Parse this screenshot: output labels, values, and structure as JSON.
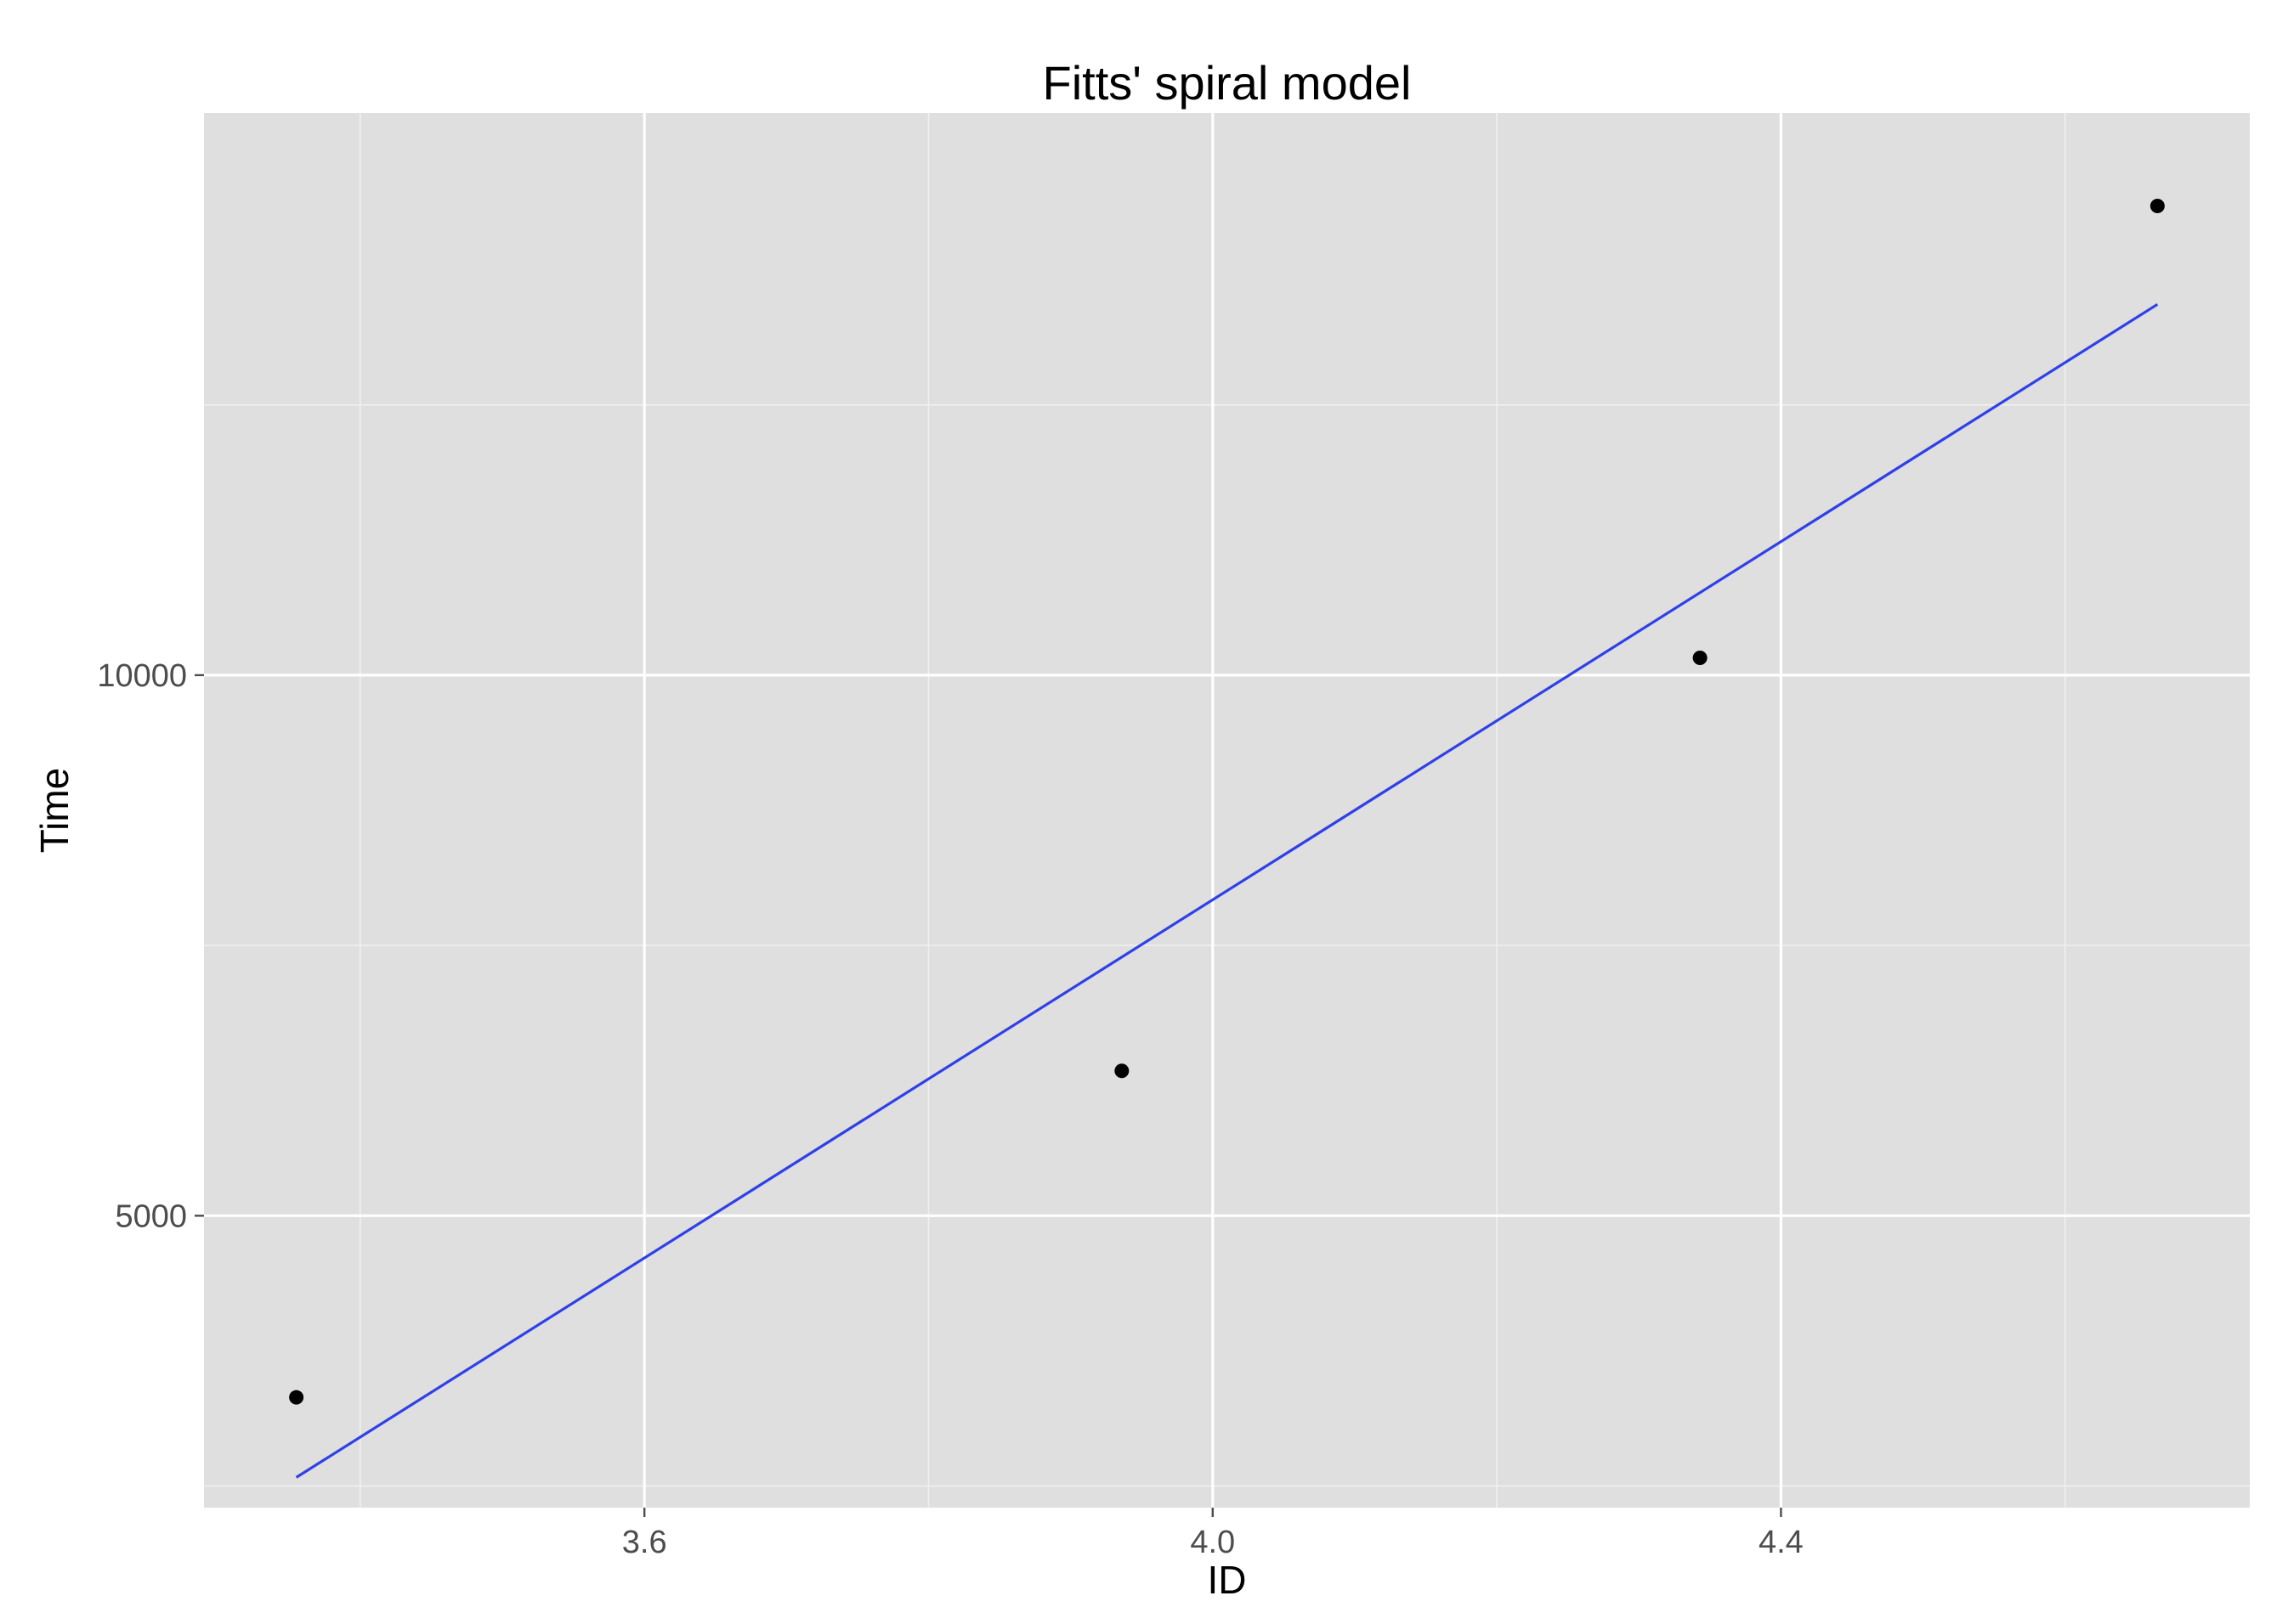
{
  "chart_data": {
    "type": "scatter",
    "title": "Fitts' spiral model",
    "xlabel": "ID",
    "ylabel": "Time",
    "xlim": [
      3.29,
      4.73
    ],
    "ylim": [
      2300,
      15200
    ],
    "x_ticks": [
      3.6,
      4.0,
      4.4
    ],
    "x_tick_labels": [
      "3.6",
      "4.0",
      "4.4"
    ],
    "x_minor_ticks": [
      3.4,
      3.8,
      4.2,
      4.6
    ],
    "y_ticks": [
      5000,
      10000
    ],
    "y_tick_labels": [
      "5000",
      "10000"
    ],
    "y_minor_ticks": [
      2500,
      7500,
      12500
    ],
    "grid": true,
    "series": [
      {
        "type": "scatter",
        "x": [
          3.355,
          3.936,
          4.343,
          4.665
        ],
        "y": [
          3320,
          6340,
          10160,
          14340
        ]
      },
      {
        "type": "line",
        "x": [
          3.355,
          4.665
        ],
        "y": [
          2580,
          13430
        ]
      }
    ],
    "colors": {
      "panel_background": "#dfdfdf",
      "grid_major": "#ffffff",
      "grid_minor": "#f0f0f0",
      "points": "#000000",
      "fit_line": "#3040e8",
      "tick_label": "#4d4d4d",
      "tick_mark": "#4d4d4d"
    }
  }
}
